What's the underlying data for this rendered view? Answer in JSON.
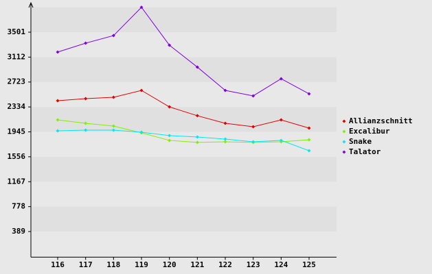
{
  "chart_data": {
    "type": "line",
    "categories": [
      "116",
      "117",
      "118",
      "119",
      "120",
      "121",
      "122",
      "123",
      "124",
      "125"
    ],
    "series": [
      {
        "name": "Allianzschnitt",
        "color": "#e00000",
        "values": [
          2432,
          2464,
          2485,
          2592,
          2335,
          2197,
          2079,
          2025,
          2132,
          2004
        ]
      },
      {
        "name": "Excalibur",
        "color": "#80f000",
        "values": [
          2132,
          2079,
          2036,
          1929,
          1812,
          1780,
          1790,
          1780,
          1790,
          1822
        ]
      },
      {
        "name": "Snake",
        "color": "#00e8f0",
        "values": [
          1961,
          1972,
          1972,
          1940,
          1887,
          1865,
          1833,
          1790,
          1812,
          1651
        ]
      },
      {
        "name": "Talator",
        "color": "#8000e0",
        "values": [
          3191,
          3330,
          3448,
          3890,
          3298,
          2956,
          2592,
          2507,
          2774,
          2539
        ]
      }
    ],
    "ylim": [
      0,
      3890
    ],
    "yticks": [
      389,
      778,
      1167,
      1556,
      1945,
      2334,
      2723,
      3112,
      3501
    ],
    "grid": true,
    "legend": "right"
  }
}
